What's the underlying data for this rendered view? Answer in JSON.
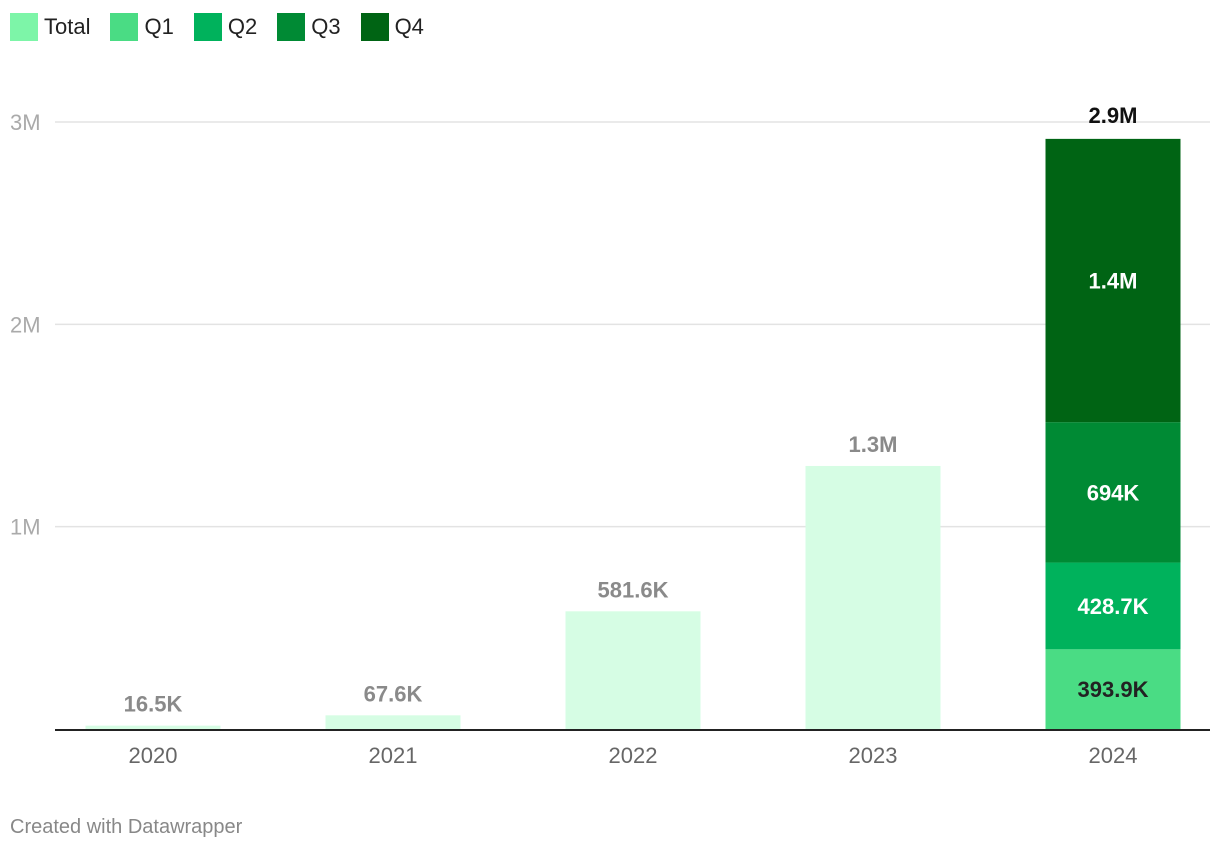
{
  "legend": [
    {
      "label": "Total",
      "color": "#7df5a8"
    },
    {
      "label": "Q1",
      "color": "#4adc84"
    },
    {
      "label": "Q2",
      "color": "#00b25c"
    },
    {
      "label": "Q3",
      "color": "#008a34"
    },
    {
      "label": "Q4",
      "color": "#006414"
    }
  ],
  "footer": "Created with Datawrapper",
  "chart_data": {
    "type": "bar",
    "stacked": true,
    "categories": [
      "2020",
      "2021",
      "2022",
      "2023",
      "2024"
    ],
    "ylim": [
      0,
      3000000
    ],
    "yticks": [
      {
        "value": 1000000,
        "label": "1M"
      },
      {
        "value": 2000000,
        "label": "2M"
      },
      {
        "value": 3000000,
        "label": "3M"
      }
    ],
    "grid": true,
    "legend_position": "top-left",
    "series": [
      {
        "name": "Total",
        "color": "#d6fde4",
        "values": [
          16500,
          67600,
          581600,
          1300000,
          null
        ],
        "labels": [
          "16.5K",
          "67.6K",
          "581.6K",
          "1.3M",
          ""
        ]
      },
      {
        "name": "Q1",
        "color": "#4adc84",
        "values": [
          null,
          null,
          null,
          null,
          393900
        ],
        "labels": [
          "",
          "",
          "",
          "",
          "393.9K"
        ]
      },
      {
        "name": "Q2",
        "color": "#00b25c",
        "values": [
          null,
          null,
          null,
          null,
          428700
        ],
        "labels": [
          "",
          "",
          "",
          "",
          "428.7K"
        ]
      },
      {
        "name": "Q3",
        "color": "#008a34",
        "values": [
          null,
          null,
          null,
          null,
          694000
        ],
        "labels": [
          "",
          "",
          "",
          "",
          "694K"
        ]
      },
      {
        "name": "Q4",
        "color": "#006414",
        "values": [
          null,
          null,
          null,
          null,
          1400000
        ],
        "labels": [
          "",
          "",
          "",
          "",
          "1.4M"
        ]
      }
    ],
    "total_labels": [
      "",
      "",
      "",
      "",
      "2.9M"
    ]
  }
}
